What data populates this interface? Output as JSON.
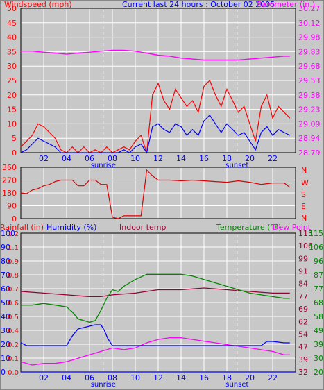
{
  "header": {
    "left": "Windspeed (mph)",
    "center": "Current last 24 hours : October 02 2005",
    "right": "Barometer (in.)"
  },
  "panel2_right_ticks": [
    "N",
    "W",
    "S",
    "E",
    "N"
  ],
  "panel3_header": {
    "rainfall": "Rainfall (in)",
    "humidity": "Humidity (%)",
    "indoor": "Indoor temp",
    "temperature": "Temperature (°F)",
    "dewpoint": "Dew Point"
  },
  "colors": {
    "background": "#c8c8c8",
    "grid": "#ffffff",
    "windspeed": "#ff0000",
    "windavg": "#0000ff",
    "barometer": "#ff00ff",
    "direction": "#dd0000",
    "humidity": "#0000ff",
    "indoor": "#990033",
    "temperature": "#008800",
    "dewpoint": "#ff00ff",
    "rainfall": "#0000ff",
    "title": "#0000ff",
    "axis_red": "#ff0000",
    "axis_blue": "#0000ff",
    "axis_magenta": "#ff00ff",
    "axis_green": "#008800",
    "axis_maroon": "#990033"
  },
  "chart_data": [
    {
      "type": "line",
      "x_ticks": [
        "02",
        "04",
        "06",
        "08",
        "10",
        "12",
        "14",
        "16",
        "18",
        "20",
        "22"
      ],
      "x_annotations": [
        {
          "label": "sunrise",
          "x": 7.2
        },
        {
          "label": "sunset",
          "x": 18.9
        }
      ],
      "xlim": [
        0,
        24
      ],
      "ylabel_left": "Windspeed (mph)",
      "ylabel_right": "Barometer (in.)",
      "y_ticks_left": [
        "50",
        "45",
        "40",
        "35",
        "30",
        "25",
        "20",
        "15",
        "10",
        "5",
        "0"
      ],
      "y_ticks_right": [
        "30.27",
        "30.12",
        "29.98",
        "29.83",
        "29.68",
        "29.53",
        "29.38",
        "29.23",
        "29.09",
        "28.94",
        "28.79"
      ],
      "ylim_left": [
        0,
        50
      ],
      "ylim_right": [
        28.79,
        30.27
      ],
      "series": [
        {
          "name": "Windspeed (mph)",
          "axis": "left",
          "x": [
            0,
            0.5,
            1,
            1.5,
            2,
            2.5,
            3,
            3.5,
            4,
            4.5,
            5,
            5.5,
            6,
            6.5,
            7,
            7.5,
            8,
            8.5,
            9,
            9.5,
            10,
            10.5,
            11,
            11.5,
            12,
            12.5,
            13,
            13.5,
            14,
            14.5,
            15,
            15.5,
            16,
            16.5,
            17,
            17.5,
            18,
            18.5,
            19,
            19.5,
            20,
            20.5,
            21,
            21.5,
            22,
            22.5,
            23,
            23.5
          ],
          "y": [
            2,
            4,
            6,
            10,
            9,
            7,
            5,
            1,
            0,
            2,
            0,
            2,
            0,
            1,
            0,
            2,
            0,
            1,
            2,
            1,
            4,
            6,
            0,
            20,
            24,
            18,
            15,
            22,
            19,
            16,
            18,
            14,
            23,
            25,
            20,
            16,
            22,
            18,
            14,
            16,
            10,
            4,
            16,
            20,
            12,
            16,
            14,
            12
          ]
        },
        {
          "name": "Average wind",
          "axis": "left",
          "x": [
            0,
            0.5,
            1,
            1.5,
            2,
            2.5,
            3,
            3.5,
            4,
            4.5,
            5,
            5.5,
            6,
            6.5,
            7,
            7.5,
            8,
            8.5,
            9,
            9.5,
            10,
            10.5,
            11,
            11.5,
            12,
            12.5,
            13,
            13.5,
            14,
            14.5,
            15,
            15.5,
            16,
            16.5,
            17,
            17.5,
            18,
            18.5,
            19,
            19.5,
            20,
            20.5,
            21,
            21.5,
            22,
            22.5,
            23,
            23.5
          ],
          "y": [
            0,
            1,
            3,
            5,
            4,
            3,
            2,
            0,
            0,
            0,
            0,
            0,
            0,
            0,
            0,
            0,
            0,
            0,
            1,
            0,
            2,
            3,
            0,
            9,
            10,
            8,
            7,
            10,
            9,
            6,
            8,
            6,
            11,
            13,
            10,
            7,
            10,
            8,
            6,
            7,
            4,
            1,
            7,
            9,
            6,
            8,
            7,
            6
          ]
        },
        {
          "name": "Barometer (in.)",
          "axis": "right",
          "x": [
            0,
            1,
            2,
            3,
            4,
            5,
            6,
            7,
            8,
            9,
            10,
            11,
            12,
            13,
            14,
            15,
            16,
            17,
            18,
            19,
            20,
            21,
            22,
            23,
            23.5
          ],
          "y": [
            29.83,
            29.83,
            29.82,
            29.81,
            29.8,
            29.81,
            29.82,
            29.83,
            29.84,
            29.84,
            29.83,
            29.81,
            29.79,
            29.78,
            29.76,
            29.75,
            29.74,
            29.74,
            29.74,
            29.74,
            29.75,
            29.76,
            29.77,
            29.78,
            29.78
          ]
        }
      ]
    },
    {
      "type": "line",
      "xlim": [
        0,
        24
      ],
      "ylabel_left": "Wind direction (degrees)",
      "y_ticks_left": [
        "360",
        "270",
        "180",
        "90",
        "0"
      ],
      "ylim_left": [
        0,
        360
      ],
      "series": [
        {
          "name": "Wind direction",
          "x": [
            0,
            0.5,
            1,
            1.5,
            2,
            2.5,
            3,
            3.5,
            4,
            4.5,
            5,
            5.5,
            6,
            6.5,
            7,
            7.5,
            8,
            8.5,
            9,
            9.5,
            10,
            10.5,
            11,
            11.5,
            12,
            13,
            14,
            15,
            16,
            17,
            18,
            19,
            20,
            21,
            22,
            23,
            23.5
          ],
          "y": [
            180,
            175,
            200,
            210,
            230,
            240,
            260,
            270,
            270,
            270,
            230,
            230,
            270,
            270,
            240,
            240,
            10,
            0,
            20,
            20,
            20,
            20,
            340,
            300,
            270,
            270,
            265,
            270,
            265,
            260,
            255,
            265,
            255,
            240,
            250,
            250,
            220
          ]
        }
      ]
    },
    {
      "type": "line",
      "x_ticks": [
        "02",
        "04",
        "06",
        "08",
        "10",
        "12",
        "14",
        "16",
        "18",
        "20",
        "22"
      ],
      "x_annotations": [
        {
          "label": "sunrise",
          "x": 7.2
        },
        {
          "label": "sunset",
          "x": 18.9
        }
      ],
      "xlim": [
        0,
        24
      ],
      "header_labels": [
        "Rainfall (in)",
        "Humidity (%)",
        "Indoor temp",
        "Temperature (°F)",
        "Dew Point"
      ],
      "y_ticks_rain": [
        "1.2",
        "1.1",
        "0.9",
        "0.8",
        "0.7",
        "0.6",
        "0.5",
        "0.4",
        "0.2",
        "0.1",
        "0.0"
      ],
      "y_ticks_humidity": [
        "100",
        "90",
        "80",
        "70",
        "60",
        "50",
        "40",
        "30",
        "20",
        "10",
        "0"
      ],
      "y_ticks_temp_right_1": [
        "113",
        "106",
        "99",
        "91",
        "84",
        "77",
        "69",
        "62",
        "54",
        "47",
        "39",
        "32"
      ],
      "y_ticks_temp_right_2": [
        "115",
        "106",
        "96",
        "87",
        "77",
        "68",
        "58",
        "49",
        "39",
        "30",
        "20"
      ],
      "ylim_humidity": [
        0,
        100
      ],
      "ylim_temp": [
        32,
        113
      ],
      "series": [
        {
          "name": "Humidity (%)",
          "axis": "humidity",
          "x": [
            0,
            0.5,
            1,
            2,
            3,
            4,
            4.5,
            5,
            5.5,
            6,
            6.5,
            7,
            7.3,
            7.6,
            8,
            9,
            10,
            12,
            14,
            16,
            18,
            20,
            21,
            21.5,
            22,
            23,
            23.5
          ],
          "y": [
            21,
            19,
            19,
            19,
            19,
            19,
            26,
            31,
            32,
            33,
            34,
            34,
            30,
            24,
            19,
            19,
            19,
            19,
            19,
            19,
            19,
            19,
            19,
            22,
            22,
            21,
            21
          ]
        },
        {
          "name": "Indoor temp",
          "axis": "temp",
          "x": [
            0,
            2,
            4,
            6,
            7,
            8,
            10,
            12,
            14,
            16,
            18,
            20,
            22,
            23.5
          ],
          "y": [
            79,
            78,
            77,
            76,
            76,
            77,
            78,
            80,
            80,
            81,
            80,
            79,
            78,
            78
          ]
        },
        {
          "name": "Temperature (°F)",
          "axis": "temp",
          "x": [
            0,
            1,
            2,
            3,
            4,
            4.5,
            5,
            5.5,
            6,
            6.5,
            7,
            7.5,
            8,
            8.5,
            9,
            10,
            11,
            12,
            13,
            14,
            15,
            16,
            17,
            18,
            19,
            20,
            21,
            22,
            23,
            23.5
          ],
          "y": [
            71,
            71,
            72,
            71,
            70,
            67,
            63,
            62,
            61,
            62,
            68,
            75,
            80,
            79,
            82,
            86,
            89,
            89,
            89,
            89,
            88,
            86,
            84,
            82,
            80,
            78,
            77,
            76,
            75,
            75
          ]
        },
        {
          "name": "Dew Point",
          "axis": "temp",
          "x": [
            0,
            1,
            2,
            3,
            4,
            5,
            6,
            7,
            8,
            9,
            10,
            11,
            12,
            13,
            14,
            15,
            16,
            17,
            18,
            19,
            20,
            21,
            22,
            23,
            23.5
          ],
          "y": [
            38,
            36,
            37,
            37,
            38,
            40,
            42,
            44,
            46,
            45,
            46,
            49,
            51,
            52,
            52,
            51,
            50,
            49,
            48,
            47,
            46,
            45,
            44,
            42,
            42
          ]
        },
        {
          "name": "Rainfall (in)",
          "axis": "rain",
          "x": [
            0,
            24
          ],
          "y": [
            0,
            0
          ]
        }
      ]
    }
  ]
}
